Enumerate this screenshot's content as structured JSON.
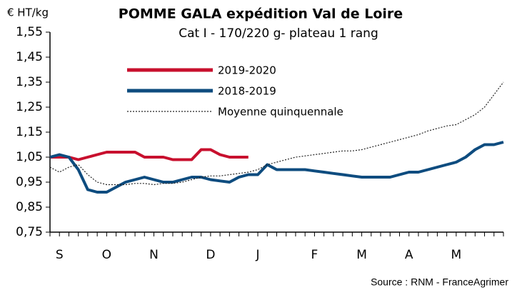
{
  "chart_data": {
    "type": "line",
    "title": "POMME GALA expédition Val de Loire",
    "subtitle": "Cat I - 170/220 g- plateau 1 rang",
    "y_label": "€ HT/kg",
    "source": "Source : RNM - FranceAgrimer",
    "categories": [
      null,
      "S",
      null,
      null,
      null,
      null,
      "O",
      null,
      null,
      null,
      null,
      "N",
      null,
      null,
      null,
      null,
      null,
      "D",
      null,
      null,
      null,
      null,
      "J",
      null,
      null,
      null,
      null,
      null,
      "F",
      null,
      null,
      null,
      null,
      "M",
      null,
      null,
      null,
      null,
      "A",
      null,
      null,
      null,
      null,
      "M",
      null,
      null,
      null,
      null,
      null
    ],
    "ylim": [
      0.75,
      1.55
    ],
    "yticks": [
      {
        "value": 0.75,
        "label": "0,75"
      },
      {
        "value": 0.85,
        "label": "0,85"
      },
      {
        "value": 0.95,
        "label": "0,95"
      },
      {
        "value": 1.05,
        "label": "1,05"
      },
      {
        "value": 1.15,
        "label": "1,15"
      },
      {
        "value": 1.25,
        "label": "1,25"
      },
      {
        "value": 1.35,
        "label": "1,35"
      },
      {
        "value": 1.45,
        "label": "1,45"
      },
      {
        "value": 1.55,
        "label": "1,55"
      }
    ],
    "legend": "upper left",
    "series": [
      {
        "name": "2019-2020",
        "color": "#c8102e",
        "line_style": "solid",
        "values": [
          1.05,
          1.05,
          1.05,
          1.04,
          1.05,
          1.06,
          1.07,
          1.07,
          1.07,
          1.07,
          1.05,
          1.05,
          1.05,
          1.04,
          1.04,
          1.04,
          1.08,
          1.08,
          1.06,
          1.05,
          1.05,
          1.05,
          null,
          null,
          null,
          null,
          null,
          null,
          null,
          null,
          null,
          null,
          null,
          null,
          null,
          null,
          null,
          null,
          null,
          null,
          null,
          null,
          null,
          null,
          null,
          null,
          null,
          null,
          null
        ]
      },
      {
        "name": "2018-2019",
        "color": "#0e4c7f",
        "line_style": "solid",
        "values": [
          1.05,
          1.06,
          1.05,
          1.0,
          0.92,
          0.91,
          0.91,
          0.93,
          0.95,
          0.96,
          0.97,
          0.96,
          0.95,
          0.95,
          0.96,
          0.97,
          0.97,
          0.96,
          0.955,
          0.95,
          0.97,
          0.98,
          0.98,
          1.02,
          1.0,
          1.0,
          1.0,
          1.0,
          0.995,
          0.99,
          0.985,
          0.98,
          0.975,
          0.97,
          0.97,
          0.97,
          0.97,
          0.98,
          0.99,
          0.99,
          1.0,
          1.01,
          1.02,
          1.03,
          1.05,
          1.08,
          1.1,
          1.1,
          1.11
        ]
      },
      {
        "name": "Moyenne quinquennale",
        "color": "#222222",
        "line_style": "dotted",
        "values": [
          1.01,
          0.99,
          1.01,
          1.02,
          0.98,
          0.95,
          0.94,
          0.94,
          0.94,
          0.945,
          0.945,
          0.94,
          0.945,
          0.945,
          0.95,
          0.96,
          0.97,
          0.975,
          0.975,
          0.98,
          0.985,
          0.99,
          1.0,
          1.02,
          1.03,
          1.04,
          1.05,
          1.055,
          1.06,
          1.065,
          1.07,
          1.075,
          1.075,
          1.08,
          1.09,
          1.1,
          1.11,
          1.12,
          1.13,
          1.14,
          1.155,
          1.165,
          1.175,
          1.18,
          1.2,
          1.22,
          1.25,
          1.3,
          1.35
        ]
      }
    ]
  }
}
